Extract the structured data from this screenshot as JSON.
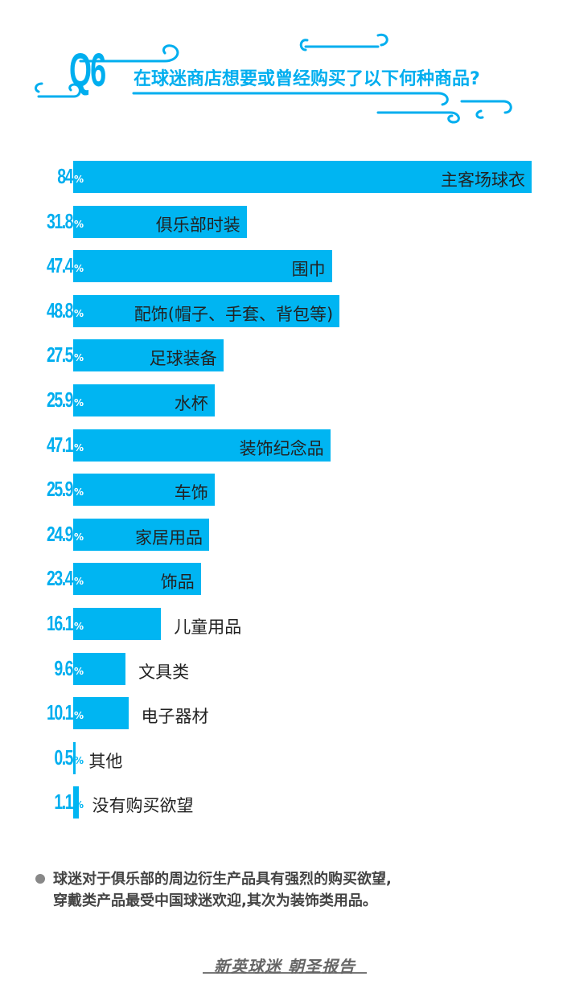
{
  "header": {
    "q_label": "Q6",
    "question": "在球迷商店想要或曾经购买了以下何种商品?"
  },
  "chart_data": {
    "type": "bar",
    "orientation": "horizontal",
    "unit": "%",
    "categories": [
      "主客场球衣",
      "俱乐部时装",
      "围巾",
      "配饰(帽子、手套、背包等)",
      "足球装备",
      "水杯",
      "装饰纪念品",
      "车饰",
      "家居用品",
      "饰品",
      "儿童用品",
      "文具类",
      "电子器材",
      "其他",
      "没有购买欲望"
    ],
    "values": [
      84,
      31.8,
      47.4,
      48.8,
      27.5,
      25.9,
      47.1,
      25.9,
      24.9,
      23.4,
      16.1,
      9.6,
      10.1,
      0.5,
      1.1
    ],
    "value_labels": [
      "84",
      "31.8",
      "47.4",
      "48.8",
      "27.5",
      "25.9",
      "47.1",
      "25.9",
      "24.9",
      "23.4",
      "16.1",
      "9.6",
      "10.1",
      "0.5",
      "1.1"
    ],
    "title": "",
    "xlim": [
      0,
      84
    ],
    "bar_color": "#00B5F2",
    "grid": false,
    "legend": "none"
  },
  "note": {
    "text": "球迷对于俱乐部的周边衍生产品具有强烈的购买欲望,\n穿戴类产品最受中国球迷欢迎,其次为装饰类用品。"
  },
  "footer": {
    "logo_text": "新英球迷 朝圣报告"
  },
  "colors": {
    "accent": "#00AEEF",
    "bar": "#00B5F2",
    "text": "#222222"
  }
}
